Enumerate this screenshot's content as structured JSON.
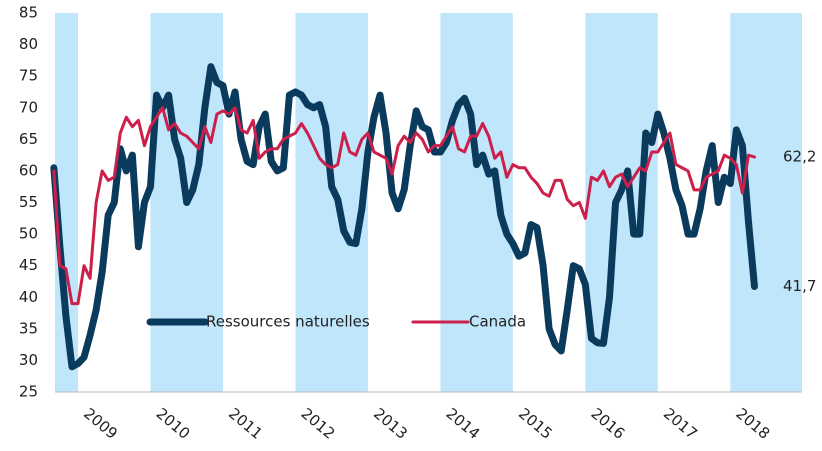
{
  "chart_data": {
    "type": "line",
    "categories": [
      null,
      null,
      null,
      null,
      "2009",
      null,
      null,
      null,
      null,
      null,
      null,
      null,
      null,
      null,
      null,
      null,
      "2010",
      null,
      null,
      null,
      null,
      null,
      null,
      null,
      null,
      null,
      null,
      null,
      "2011",
      null,
      null,
      null,
      null,
      null,
      null,
      null,
      null,
      null,
      null,
      null,
      "2012",
      null,
      null,
      null,
      null,
      null,
      null,
      null,
      null,
      null,
      null,
      null,
      "2013",
      null,
      null,
      null,
      null,
      null,
      null,
      null,
      null,
      null,
      null,
      null,
      "2014",
      null,
      null,
      null,
      null,
      null,
      null,
      null,
      null,
      null,
      null,
      null,
      "2015",
      null,
      null,
      null,
      null,
      null,
      null,
      null,
      null,
      null,
      null,
      null,
      "2016",
      null,
      null,
      null,
      null,
      null,
      null,
      null,
      null,
      null,
      null,
      null,
      "2017",
      null,
      null,
      null,
      null,
      null,
      null,
      null,
      null,
      null,
      null,
      null,
      "2018",
      null,
      null,
      null,
      null
    ],
    "series": [
      {
        "name": "Ressources naturelles",
        "color": "#0b3b5c",
        "values": [
          60.5,
          48,
          37,
          29,
          29.5,
          30.5,
          34,
          38,
          44,
          53,
          55,
          63.5,
          60,
          62.5,
          48,
          55,
          57.5,
          72,
          70,
          72,
          65,
          62,
          55,
          57,
          61,
          70,
          76.5,
          74,
          73.5,
          69,
          72.5,
          65,
          61.5,
          61,
          67,
          69,
          61.5,
          60,
          60.5,
          72,
          72.5,
          72,
          70.5,
          70,
          70.5,
          67,
          57.5,
          55.5,
          50.5,
          48.7,
          48.5,
          54,
          63,
          68.5,
          72,
          66,
          56.5,
          54,
          57,
          64,
          69.5,
          67,
          66.5,
          63,
          63,
          64.5,
          68,
          70.5,
          71.5,
          69,
          61,
          62.5,
          59.5,
          60,
          53,
          50,
          48.5,
          46.5,
          47,
          51.5,
          51,
          45,
          35,
          32.5,
          31.5,
          38,
          45,
          44.5,
          42,
          33.5,
          32.8,
          32.7,
          40,
          55,
          57,
          60,
          50,
          50,
          66,
          64.5,
          69,
          66,
          62,
          57,
          54.5,
          50,
          50,
          54,
          60,
          64,
          55,
          59,
          58,
          66.5,
          64,
          52,
          41.7
        ],
        "value_labels": [
          null,
          null,
          null,
          null,
          null,
          null,
          null,
          null,
          null,
          null,
          null,
          null,
          null,
          null,
          null,
          null,
          null,
          null,
          null,
          null,
          null,
          null,
          null,
          null,
          null,
          null,
          null,
          null,
          null,
          null,
          null,
          null,
          null,
          null,
          null,
          null,
          null,
          null,
          null,
          null,
          null,
          null,
          null,
          null,
          null,
          null,
          null,
          null,
          null,
          null,
          null,
          null,
          null,
          null,
          null,
          null,
          null,
          null,
          null,
          null,
          null,
          null,
          null,
          null,
          null,
          null,
          null,
          null,
          null,
          null,
          null,
          null,
          null,
          null,
          null,
          null,
          null,
          null,
          null,
          null,
          null,
          null,
          null,
          null,
          null,
          null,
          null,
          null,
          null,
          null,
          null,
          null,
          null,
          null,
          null,
          null,
          null,
          null,
          null,
          null,
          null,
          null,
          null,
          null,
          null,
          null,
          null,
          null,
          null,
          null,
          null,
          null,
          null,
          null,
          null,
          null,
          "41,7"
        ]
      },
      {
        "name": "Canada",
        "color": "#cc1f4a",
        "values": [
          60,
          45,
          44.5,
          39,
          39,
          45,
          43,
          55,
          60,
          58.5,
          59,
          66,
          68.5,
          67,
          68,
          64,
          67,
          68.5,
          70,
          66.5,
          67.5,
          66,
          65.5,
          64.5,
          63.5,
          67,
          64.5,
          69,
          69.5,
          69,
          70,
          66.5,
          66,
          68,
          62,
          63,
          63.5,
          63.5,
          65,
          65.5,
          66,
          67.5,
          66,
          64,
          62,
          61,
          60.5,
          61,
          66,
          63,
          62.5,
          65,
          66,
          63,
          62.5,
          62,
          59.5,
          64,
          65.5,
          64.5,
          66,
          65,
          63,
          64,
          64,
          65.5,
          67,
          63.5,
          63,
          65.5,
          65.5,
          67.5,
          65.5,
          62,
          63,
          59,
          61,
          60.5,
          60.5,
          59,
          58,
          56.5,
          56,
          58.5,
          58.5,
          55.5,
          54.5,
          55,
          52.5,
          59,
          58.5,
          60,
          57.5,
          59,
          59.5,
          57.5,
          59,
          60.5,
          60,
          63,
          63,
          64.5,
          66,
          61,
          60.5,
          60,
          57,
          57,
          59,
          59.5,
          60,
          62.5,
          62,
          61,
          56.5,
          62.5,
          62.2
        ],
        "value_labels": [
          null,
          null,
          null,
          null,
          null,
          null,
          null,
          null,
          null,
          null,
          null,
          null,
          null,
          null,
          null,
          null,
          null,
          null,
          null,
          null,
          null,
          null,
          null,
          null,
          null,
          null,
          null,
          null,
          null,
          null,
          null,
          null,
          null,
          null,
          null,
          null,
          null,
          null,
          null,
          null,
          null,
          null,
          null,
          null,
          null,
          null,
          null,
          null,
          null,
          null,
          null,
          null,
          null,
          null,
          null,
          null,
          null,
          null,
          null,
          null,
          null,
          null,
          null,
          null,
          null,
          null,
          null,
          null,
          null,
          null,
          null,
          null,
          null,
          null,
          null,
          null,
          null,
          null,
          null,
          null,
          null,
          null,
          null,
          null,
          null,
          null,
          null,
          null,
          null,
          null,
          null,
          null,
          null,
          null,
          null,
          null,
          null,
          null,
          null,
          null,
          null,
          null,
          null,
          null,
          null,
          null,
          null,
          null,
          null,
          null,
          null,
          null,
          null,
          null,
          null,
          null,
          "62,2"
        ]
      }
    ],
    "ylim": [
      25,
      85
    ],
    "yticks": [
      25,
      30,
      35,
      40,
      45,
      50,
      55,
      60,
      65,
      70,
      75,
      80,
      85
    ],
    "grid": false
  }
}
